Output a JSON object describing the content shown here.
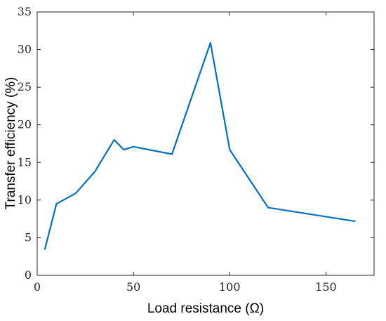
{
  "chart_data": {
    "type": "line",
    "title": "",
    "xlabel": "Load resistance (Ω)",
    "ylabel": "Transfer efficiency (%)",
    "xlim": [
      0,
      175
    ],
    "ylim": [
      0,
      35
    ],
    "xticks": [
      0,
      50,
      100,
      150
    ],
    "yticks": [
      0,
      5,
      10,
      15,
      20,
      25,
      30,
      35
    ],
    "grid": false,
    "legend": "none",
    "series": [
      {
        "color": "#0072BD",
        "x": [
          4,
          10,
          20,
          30,
          40,
          45,
          50,
          70,
          90,
          100,
          120,
          165
        ],
        "y": [
          3.5,
          9.5,
          10.9,
          13.8,
          18.0,
          16.7,
          17.1,
          16.1,
          30.9,
          16.7,
          9.0,
          7.2
        ]
      }
    ]
  }
}
